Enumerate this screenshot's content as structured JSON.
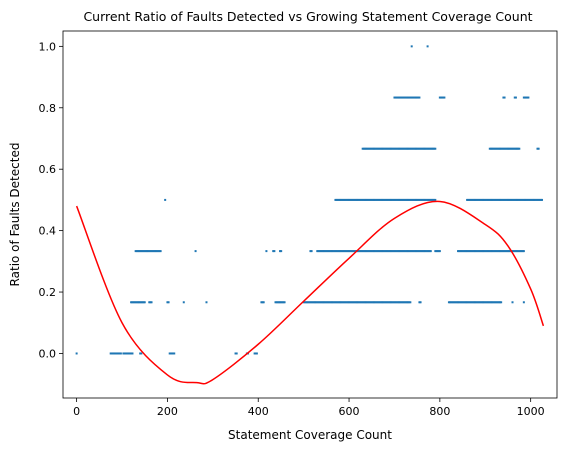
{
  "chart_data": {
    "type": "scatter",
    "title": "Current Ratio of Faults Detected vs Growing Statement Coverage Count",
    "xlabel": "Statement Coverage Count",
    "ylabel": "Ratio of Faults Detected",
    "xlim": [
      -30,
      1058
    ],
    "ylim": [
      -0.145,
      1.05
    ],
    "xticks": [
      0,
      200,
      400,
      600,
      800,
      1000
    ],
    "xtick_labels": [
      "0",
      "200",
      "400",
      "600",
      "800",
      "1000"
    ],
    "yticks": [
      0.0,
      0.2,
      0.4,
      0.6,
      0.8,
      1.0
    ],
    "ytick_labels": [
      "0.0",
      "0.2",
      "0.4",
      "0.6",
      "0.8",
      "1.0"
    ],
    "grid": false,
    "colors": {
      "points": "#1f77b4",
      "fit": "#ff0000"
    },
    "scatter_clusters": [
      {
        "y": 0.0,
        "x_ranges": [
          [
            0,
            1
          ],
          [
            75,
            98
          ],
          [
            103,
            124
          ],
          [
            140,
            143
          ],
          [
            205,
            215
          ],
          [
            350,
            353
          ],
          [
            375,
            379
          ],
          [
            392,
            397
          ]
        ]
      },
      {
        "y": 0.1667,
        "x_ranges": [
          [
            120,
            150
          ],
          [
            160,
            166
          ],
          [
            200,
            204
          ],
          [
            236,
            238
          ],
          [
            286,
            288
          ],
          [
            407,
            412
          ],
          [
            438,
            458
          ],
          [
            500,
            735
          ],
          [
            755,
            758
          ],
          [
            820,
            935
          ],
          [
            960,
            962
          ],
          [
            985,
            987
          ]
        ]
      },
      {
        "y": 0.3333,
        "x_ranges": [
          [
            130,
            185
          ],
          [
            262,
            264
          ],
          [
            418,
            420
          ],
          [
            433,
            436
          ],
          [
            448,
            451
          ],
          [
            515,
            518
          ],
          [
            530,
            780
          ],
          [
            790,
            800
          ],
          [
            840,
            985
          ]
        ]
      },
      {
        "y": 0.5,
        "x_ranges": [
          [
            195,
            197
          ],
          [
            570,
            790
          ],
          [
            860,
            1025
          ]
        ]
      },
      {
        "y": 0.6667,
        "x_ranges": [
          [
            630,
            792
          ],
          [
            910,
            975
          ],
          [
            1015,
            1018
          ]
        ]
      },
      {
        "y": 0.8333,
        "x_ranges": [
          [
            700,
            756
          ],
          [
            800,
            812
          ],
          [
            940,
            943
          ],
          [
            965,
            968
          ],
          [
            985,
            995
          ]
        ]
      },
      {
        "y": 1.0,
        "x_ranges": [
          [
            738,
            740
          ],
          [
            773,
            775
          ]
        ]
      }
    ],
    "fit_curve": {
      "name": "",
      "x": [
        0,
        100,
        200,
        265,
        300,
        400,
        500,
        600,
        700,
        800,
        900,
        950,
        1000,
        1028
      ],
      "y": [
        0.48,
        0.1,
        -0.07,
        -0.095,
        -0.085,
        0.03,
        0.17,
        0.31,
        0.44,
        0.495,
        0.42,
        0.35,
        0.21,
        0.09
      ]
    }
  }
}
